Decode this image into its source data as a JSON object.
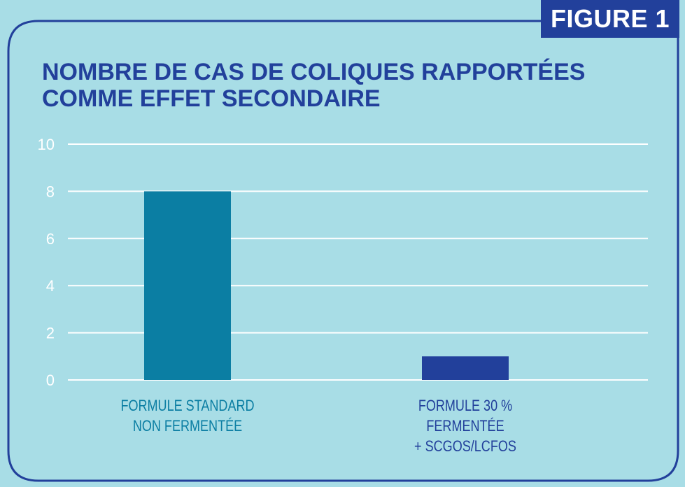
{
  "badge": {
    "label": "FIGURE 1"
  },
  "colors": {
    "background": "#a8dde6",
    "frame": "#22409b",
    "title": "#22409b",
    "gridline": "#ffffff",
    "series_standard": "#0b7ea3",
    "series_fermented": "#22409b"
  },
  "chart_data": {
    "type": "bar",
    "title_lines": [
      "NOMBRE DE CAS DE COLIQUES RAPPORTÉES",
      "COMME EFFET SECONDAIRE"
    ],
    "xlabel": "",
    "ylabel": "",
    "ylim": [
      0,
      10
    ],
    "yticks": [
      "0",
      "2",
      "4",
      "6",
      "8",
      "10"
    ],
    "grid": true,
    "categories": [
      {
        "lines": [
          "FORMULE STANDARD",
          "NON FERMENTÉE"
        ],
        "color": "#0b7ea3"
      },
      {
        "lines": [
          "FORMULE 30 % FERMENTÉE",
          "+ SCGOS/LCFOS"
        ],
        "color": "#22409b"
      }
    ],
    "values": [
      8,
      1
    ]
  }
}
